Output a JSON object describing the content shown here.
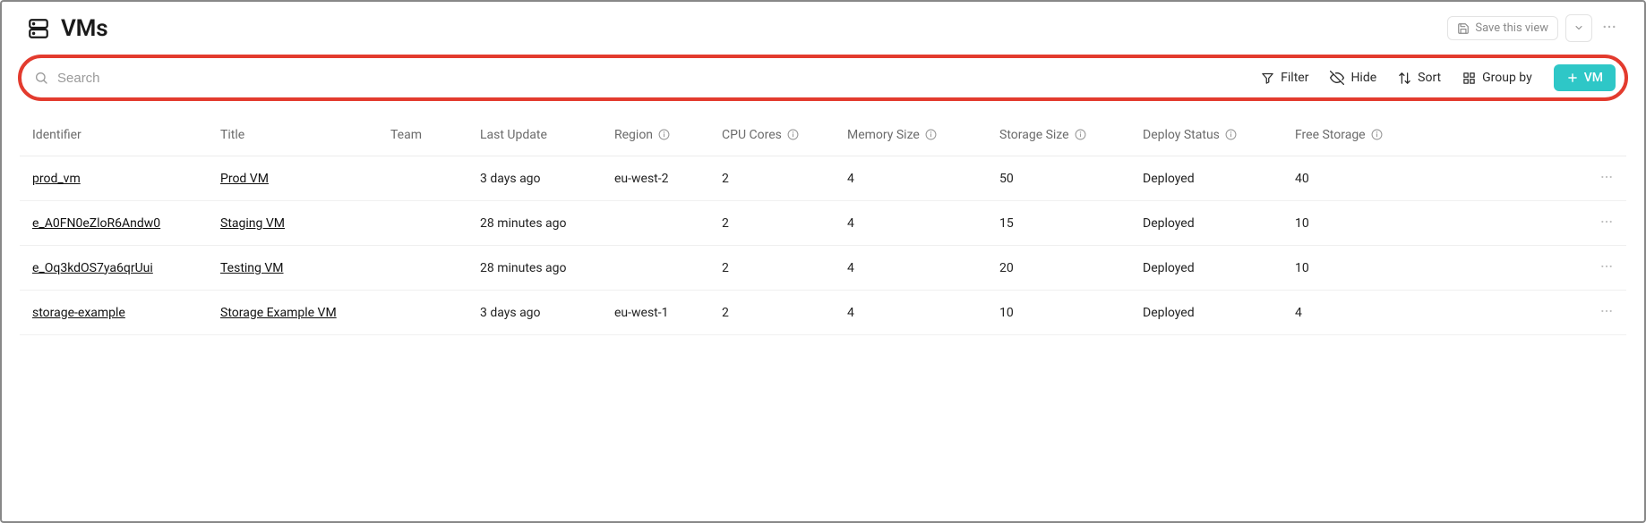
{
  "header": {
    "title": "VMs",
    "save_view_label": "Save this view"
  },
  "toolbar": {
    "search_placeholder": "Search",
    "filter_label": "Filter",
    "hide_label": "Hide",
    "sort_label": "Sort",
    "group_by_label": "Group by",
    "new_button_label": "VM"
  },
  "columns": {
    "identifier": "Identifier",
    "title": "Title",
    "team": "Team",
    "last_update": "Last Update",
    "region": "Region",
    "cpu_cores": "CPU Cores",
    "memory_size": "Memory Size",
    "storage_size": "Storage Size",
    "deploy_status": "Deploy Status",
    "free_storage": "Free Storage"
  },
  "rows": [
    {
      "identifier": "prod_vm",
      "title": "Prod VM",
      "team": "",
      "last_update": "3 days ago",
      "region": "eu-west-2",
      "cpu_cores": "2",
      "memory_size": "4",
      "storage_size": "50",
      "deploy_status": "Deployed",
      "free_storage": "40"
    },
    {
      "identifier": "e_A0FN0eZloR6Andw0",
      "title": "Staging VM",
      "team": "",
      "last_update": "28 minutes ago",
      "region": "",
      "cpu_cores": "2",
      "memory_size": "4",
      "storage_size": "15",
      "deploy_status": "Deployed",
      "free_storage": "10"
    },
    {
      "identifier": "e_Oq3kdOS7ya6qrUui",
      "title": "Testing VM",
      "team": "",
      "last_update": "28 minutes ago",
      "region": "",
      "cpu_cores": "2",
      "memory_size": "4",
      "storage_size": "20",
      "deploy_status": "Deployed",
      "free_storage": "10"
    },
    {
      "identifier": "storage-example",
      "title": "Storage Example VM",
      "team": "",
      "last_update": "3 days ago",
      "region": "eu-west-1",
      "cpu_cores": "2",
      "memory_size": "4",
      "storage_size": "10",
      "deploy_status": "Deployed",
      "free_storage": "4"
    }
  ],
  "colors": {
    "highlight_border": "#e33b2e",
    "accent": "#2ec7c7",
    "text_muted": "#6b6b6b",
    "border": "#ececec"
  }
}
